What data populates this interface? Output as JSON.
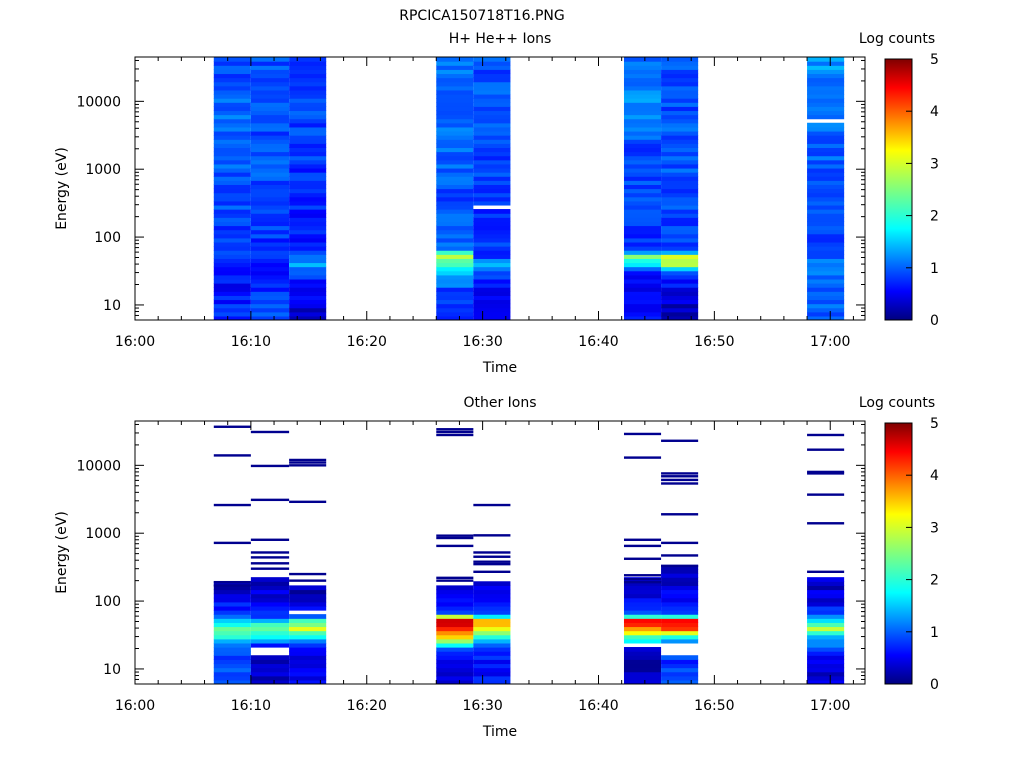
{
  "figure_title": "RPCICA150718T16.PNG",
  "chart_data": [
    {
      "type": "heatmap",
      "title": "H+ He++ Ions",
      "xlabel": "Time",
      "ylabel": "Energy (eV)",
      "y_scale": "log",
      "xlim": [
        "16:00",
        "17:03"
      ],
      "ylim": [
        6,
        45000
      ],
      "x_ticks": [
        "16:00",
        "16:10",
        "16:20",
        "16:30",
        "16:40",
        "16:50",
        "17:00"
      ],
      "y_ticks": [
        "10",
        "100",
        "1000",
        "10000"
      ],
      "colorbar": {
        "label": "Log counts",
        "range": [
          0,
          5
        ],
        "ticks": [
          "0",
          "1",
          "2",
          "3",
          "4",
          "5"
        ],
        "colormap": "jet"
      },
      "segments": [
        {
          "start": "16:06.8",
          "end": "16:10.0",
          "profile": [
            [
              6,
              0.8
            ],
            [
              10,
              0.8
            ],
            [
              30,
              0.6
            ],
            [
              60,
              0.9
            ],
            [
              100,
              0.9
            ],
            [
              400,
              1.0
            ],
            [
              2000,
              1.1
            ],
            [
              10000,
              1.1
            ],
            [
              45000,
              1.0
            ]
          ]
        },
        {
          "start": "16:10.0",
          "end": "16:13.3",
          "profile": [
            [
              6,
              1.0
            ],
            [
              10,
              1.0
            ],
            [
              30,
              0.7
            ],
            [
              60,
              0.8
            ],
            [
              100,
              0.9
            ],
            [
              400,
              1.0
            ],
            [
              2000,
              1.0
            ],
            [
              10000,
              1.0
            ],
            [
              45000,
              1.0
            ]
          ],
          "gaps": [
            [
              82,
              90
            ]
          ]
        },
        {
          "start": "16:13.3",
          "end": "16:16.5",
          "profile": [
            [
              6,
              0.3
            ],
            [
              10,
              0.5
            ],
            [
              30,
              0.9
            ],
            [
              40,
              1.4
            ],
            [
              60,
              0.8
            ],
            [
              100,
              0.7
            ],
            [
              400,
              0.8
            ],
            [
              2000,
              0.9
            ],
            [
              10000,
              1.0
            ],
            [
              45000,
              1.0
            ]
          ]
        },
        {
          "start": "16:26.0",
          "end": "16:29.2",
          "profile": [
            [
              6,
              0.8
            ],
            [
              15,
              0.8
            ],
            [
              30,
              1.6
            ],
            [
              40,
              2.2
            ],
            [
              55,
              2.7
            ],
            [
              65,
              1.2
            ],
            [
              100,
              1.0
            ],
            [
              400,
              1.0
            ],
            [
              2000,
              1.1
            ],
            [
              10000,
              1.2
            ],
            [
              45000,
              1.1
            ]
          ]
        },
        {
          "start": "16:29.2",
          "end": "16:32.4",
          "profile": [
            [
              6,
              0.6
            ],
            [
              15,
              0.6
            ],
            [
              30,
              1.0
            ],
            [
              42,
              1.8
            ],
            [
              50,
              1.0
            ],
            [
              100,
              0.8
            ],
            [
              400,
              0.8
            ],
            [
              2000,
              1.0
            ],
            [
              10000,
              1.0
            ],
            [
              45000,
              1.0
            ]
          ],
          "gaps": [
            [
              270,
              300
            ]
          ]
        },
        {
          "start": "16:42.2",
          "end": "16:45.4",
          "profile": [
            [
              6,
              0.8
            ],
            [
              15,
              0.6
            ],
            [
              28,
              0.7
            ],
            [
              40,
              1.6
            ],
            [
              55,
              3.0
            ],
            [
              62,
              1.0
            ],
            [
              100,
              0.9
            ],
            [
              400,
              1.0
            ],
            [
              2000,
              1.0
            ],
            [
              10000,
              1.3
            ],
            [
              45000,
              1.1
            ]
          ]
        },
        {
          "start": "16:45.4",
          "end": "16:48.6",
          "profile": [
            [
              6,
              0.2
            ],
            [
              15,
              0.5
            ],
            [
              30,
              0.9
            ],
            [
              40,
              2.8
            ],
            [
              55,
              3.2
            ],
            [
              62,
              1.0
            ],
            [
              100,
              0.9
            ],
            [
              400,
              1.0
            ],
            [
              2000,
              1.1
            ],
            [
              10000,
              1.0
            ],
            [
              45000,
              1.0
            ]
          ]
        },
        {
          "start": "16:58.0",
          "end": "17:01.2",
          "profile": [
            [
              6,
              1.1
            ],
            [
              20,
              1.1
            ],
            [
              35,
              1.4
            ],
            [
              45,
              1.1
            ],
            [
              100,
              1.0
            ],
            [
              400,
              1.0
            ],
            [
              2000,
              1.1
            ],
            [
              10000,
              1.1
            ],
            [
              45000,
              1.4
            ]
          ],
          "gaps": [
            [
              4700,
              5200
            ]
          ]
        }
      ]
    },
    {
      "type": "heatmap",
      "title": "Other Ions",
      "xlabel": "Time",
      "ylabel": "Energy (eV)",
      "y_scale": "log",
      "xlim": [
        "16:00",
        "17:03"
      ],
      "ylim": [
        6,
        45000
      ],
      "x_ticks": [
        "16:00",
        "16:10",
        "16:20",
        "16:30",
        "16:40",
        "16:50",
        "17:00"
      ],
      "y_ticks": [
        "10",
        "100",
        "1000",
        "10000"
      ],
      "colorbar": {
        "label": "Log counts",
        "range": [
          0,
          5
        ],
        "ticks": [
          "0",
          "1",
          "2",
          "3",
          "4",
          "5"
        ],
        "colormap": "jet"
      },
      "segments": [
        {
          "start": "16:06.8",
          "end": "16:10.0",
          "profile": [
            [
              6,
              1.0
            ],
            [
              15,
              1.0
            ],
            [
              25,
              1.4
            ],
            [
              30,
              2.2
            ],
            [
              40,
              2.4
            ],
            [
              50,
              1.8
            ],
            [
              65,
              0.9
            ],
            [
              100,
              0.6
            ],
            [
              200,
              0.1
            ]
          ],
          "lines": [
            37000,
            14000,
            2600,
            720,
            190,
            170
          ]
        },
        {
          "start": "16:10.0",
          "end": "16:13.3",
          "profile": [
            [
              6,
              0.3
            ],
            [
              15,
              0.3
            ],
            [
              22,
              0.6
            ],
            [
              30,
              1.8
            ],
            [
              45,
              2.3
            ],
            [
              60,
              1.0
            ],
            [
              100,
              0.5
            ],
            [
              230,
              0.3
            ]
          ],
          "gaps": [
            [
              16,
              22
            ]
          ],
          "lines": [
            31000,
            9800,
            3100,
            800,
            520,
            440,
            360,
            300
          ]
        },
        {
          "start": "16:13.3",
          "end": "16:16.5",
          "profile": [
            [
              6,
              0.6
            ],
            [
              20,
              0.6
            ],
            [
              28,
              1.6
            ],
            [
              40,
              2.9
            ],
            [
              50,
              2.5
            ],
            [
              60,
              1.0
            ],
            [
              100,
              0.4
            ],
            [
              180,
              0.2
            ]
          ],
          "gaps": [
            [
              62,
              70
            ]
          ],
          "lines": [
            12000,
            11000,
            10000,
            2900,
            250,
            200
          ]
        },
        {
          "start": "16:26.0",
          "end": "16:29.2",
          "profile": [
            [
              6,
              0.2
            ],
            [
              10,
              0.5
            ],
            [
              18,
              0.8
            ],
            [
              22,
              1.6
            ],
            [
              30,
              3.4
            ],
            [
              40,
              4.2
            ],
            [
              55,
              4.6
            ],
            [
              65,
              1.0
            ],
            [
              100,
              0.5
            ],
            [
              160,
              0.4
            ]
          ],
          "lines": [
            34000,
            31000,
            28000,
            920,
            850,
            650,
            220,
            200
          ]
        },
        {
          "start": "16:29.2",
          "end": "16:32.4",
          "profile": [
            [
              6,
              0.7
            ],
            [
              20,
              0.7
            ],
            [
              28,
              2.0
            ],
            [
              40,
              3.2
            ],
            [
              55,
              3.4
            ],
            [
              62,
              1.0
            ],
            [
              100,
              0.6
            ],
            [
              190,
              0.4
            ]
          ],
          "lines": [
            2600,
            930,
            520,
            450,
            380,
            350,
            270
          ]
        },
        {
          "start": "16:42.2",
          "end": "16:45.4",
          "profile": [
            [
              6,
              0.3
            ],
            [
              19,
              0.3
            ],
            [
              26,
              1.7
            ],
            [
              30,
              2.2
            ],
            [
              40,
              3.8
            ],
            [
              55,
              4.3
            ],
            [
              62,
              1.0
            ],
            [
              100,
              0.6
            ],
            [
              220,
              0.4
            ]
          ],
          "gaps": [
            [
              20,
              25
            ]
          ],
          "lines": [
            29000,
            13000,
            800,
            650,
            420,
            240,
            210,
            190
          ]
        },
        {
          "start": "16:45.4",
          "end": "16:48.6",
          "profile": [
            [
              6,
              0.9
            ],
            [
              15,
              0.9
            ],
            [
              25,
              1.1
            ],
            [
              30,
              2.2
            ],
            [
              40,
              4.0
            ],
            [
              55,
              4.6
            ],
            [
              62,
              0.9
            ],
            [
              100,
              0.5
            ],
            [
              330,
              0.4
            ]
          ],
          "gaps": [
            [
              15,
              25
            ]
          ],
          "lines": [
            23000,
            7600,
            6900,
            6100,
            5400,
            1900,
            720,
            470,
            330
          ]
        },
        {
          "start": "16:58.0",
          "end": "17:01.2",
          "profile": [
            [
              10,
              0.4
            ],
            [
              13,
              0.4
            ],
            [
              20,
              0.9
            ],
            [
              30,
              1.6
            ],
            [
              40,
              3.0
            ],
            [
              48,
              1.8
            ],
            [
              65,
              0.9
            ],
            [
              100,
              0.5
            ],
            [
              240,
              0.3
            ]
          ],
          "lines": [
            28000,
            17000,
            8000,
            7600,
            3700,
            1400,
            270
          ]
        }
      ]
    }
  ]
}
